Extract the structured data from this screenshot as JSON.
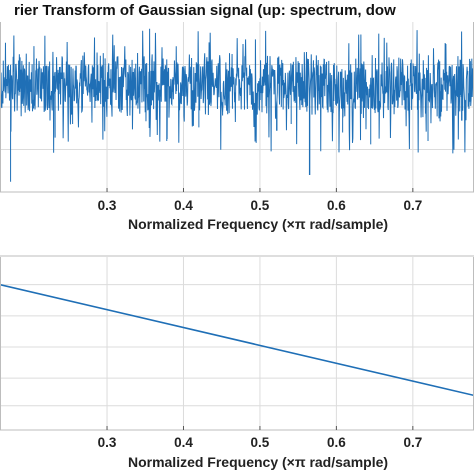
{
  "figure_title": "rier Transform of Gaussian signal (up: spectrum, dow",
  "colors": {
    "line": "#1f6fb6",
    "axis_bg": "#ffffff",
    "grid": "#dcdcdc",
    "frame": "#bdbdbd",
    "figure_bg": "#ffffff"
  },
  "chart_data": [
    {
      "type": "line",
      "title": "rier Transform of Gaussian signal (up: spectrum, dow",
      "xlabel": "Normalized Frequency  (×π rad/sample)",
      "ylabel": "",
      "xlim": [
        0.16,
        0.78
      ],
      "ylim": [
        0,
        1
      ],
      "xticks": [
        0.3,
        0.4,
        0.5,
        0.6,
        0.7
      ],
      "xtick_labels": [
        "0.3",
        "0.4",
        "0.5",
        "0.6",
        "0.7"
      ],
      "grid": true,
      "noise": {
        "mean": 0.62,
        "amplitude": 0.22,
        "n_points": 1300,
        "deep_dips": [
          [
            0.174,
            0.06
          ],
          [
            0.232,
            0.32
          ],
          [
            0.255,
            0.4
          ],
          [
            0.33,
            0.45
          ],
          [
            0.378,
            0.3
          ],
          [
            0.42,
            0.38
          ],
          [
            0.451,
            0.45
          ],
          [
            0.522,
            0.36
          ],
          [
            0.541,
            0.4
          ],
          [
            0.565,
            0.1
          ],
          [
            0.608,
            0.35
          ],
          [
            0.645,
            0.28
          ],
          [
            0.72,
            0.3
          ],
          [
            0.764,
            0.42
          ]
        ]
      }
    },
    {
      "type": "line",
      "title": "",
      "xlabel": "Normalized Frequency  (×π rad/sample)",
      "ylabel": "",
      "xlim": [
        0.16,
        0.78
      ],
      "ylim": [
        0,
        1
      ],
      "xticks": [
        0.3,
        0.4,
        0.5,
        0.6,
        0.7
      ],
      "xtick_labels": [
        "0.3",
        "0.4",
        "0.5",
        "0.6",
        "0.7"
      ],
      "grid": true,
      "x": [
        0.16,
        0.78
      ],
      "y": [
        0.84,
        0.2
      ]
    }
  ]
}
